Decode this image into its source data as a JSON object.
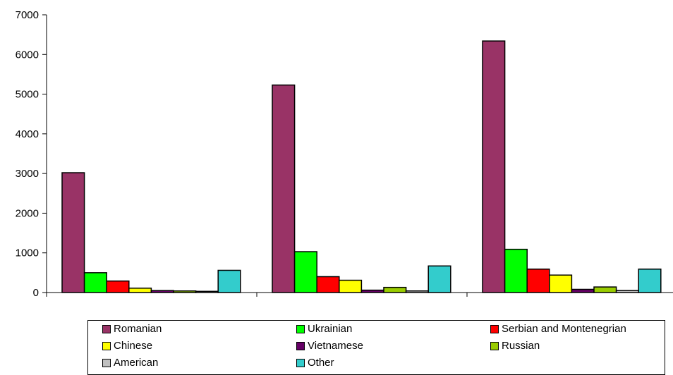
{
  "chart_data": {
    "type": "bar",
    "title": "",
    "xlabel": "",
    "ylabel": "",
    "ylim": [
      0,
      7000
    ],
    "yticks": [
      0,
      1000,
      2000,
      3000,
      4000,
      5000,
      6000,
      7000
    ],
    "grid": false,
    "legend_position": "bottom",
    "categories": [
      "",
      "",
      ""
    ],
    "series": [
      {
        "name": "Romanian",
        "color": "#993366",
        "values": [
          3020,
          5230,
          6340
        ]
      },
      {
        "name": "Ukrainian",
        "color": "#00ff00",
        "values": [
          500,
          1030,
          1090
        ]
      },
      {
        "name": "Serbian and Montenegrian",
        "color": "#ff0000",
        "values": [
          290,
          400,
          590
        ]
      },
      {
        "name": "Chinese",
        "color": "#ffff00",
        "values": [
          110,
          310,
          440
        ]
      },
      {
        "name": "Vietnamese",
        "color": "#660066",
        "values": [
          50,
          60,
          80
        ]
      },
      {
        "name": "Russian",
        "color": "#99cc00",
        "values": [
          40,
          130,
          140
        ]
      },
      {
        "name": "American",
        "color": "#c0c0c0",
        "values": [
          30,
          40,
          50
        ]
      },
      {
        "name": "Other",
        "color": "#33cccc",
        "values": [
          560,
          670,
          590
        ]
      }
    ]
  }
}
